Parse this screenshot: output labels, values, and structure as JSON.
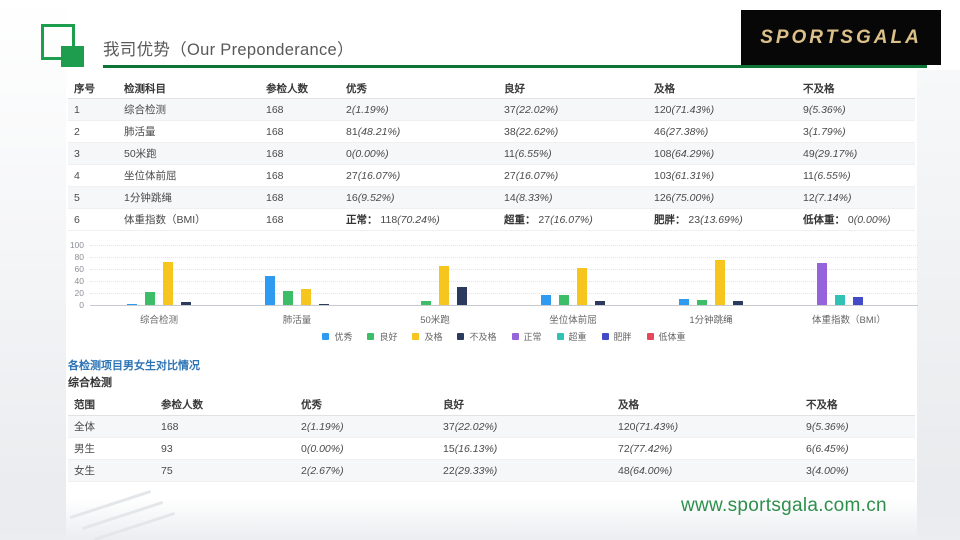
{
  "header": {
    "title": "我司优势（Our Preponderance）",
    "logo": "SPORTSGALA"
  },
  "table1": {
    "headers": [
      "序号",
      "检测科目",
      "参检人数",
      "优秀",
      "良好",
      "及格",
      "不及格"
    ],
    "rows": [
      [
        "1",
        "综合检测",
        "168",
        "2(1.19%)",
        "37(22.02%)",
        "120(71.43%)",
        "9(5.36%)"
      ],
      [
        "2",
        "肺活量",
        "168",
        "81(48.21%)",
        "38(22.62%)",
        "46(27.38%)",
        "3(1.79%)"
      ],
      [
        "3",
        "50米跑",
        "168",
        "0(0.00%)",
        "11(6.55%)",
        "108(64.29%)",
        "49(29.17%)"
      ],
      [
        "4",
        "坐位体前屈",
        "168",
        "27(16.07%)",
        "27(16.07%)",
        "103(61.31%)",
        "11(6.55%)"
      ],
      [
        "5",
        "1分钟跳绳",
        "168",
        "16(9.52%)",
        "14(8.33%)",
        "126(75.00%)",
        "12(7.14%)"
      ],
      [
        "6",
        "体重指数（BMI）",
        "168",
        "正常： 118(70.24%)",
        "超重： 27(16.07%)",
        "肥胖： 23(13.69%)",
        "低体重： 0(0.00%)"
      ]
    ]
  },
  "chart_data": {
    "type": "bar",
    "categories": [
      "综合检测",
      "肺活量",
      "50米跑",
      "坐位体前屈",
      "1分钟跳绳",
      "体重指数（BMI）"
    ],
    "values": [
      [
        1.19,
        22.02,
        71.43,
        5.36
      ],
      [
        48.21,
        22.62,
        27.38,
        1.79
      ],
      [
        0,
        6.55,
        64.29,
        29.17
      ],
      [
        16.07,
        16.07,
        61.31,
        6.55
      ],
      [
        9.52,
        8.33,
        75.0,
        7.14
      ],
      [
        70.24,
        16.07,
        13.69,
        0
      ]
    ],
    "yticks": [
      0,
      20,
      40,
      60,
      80,
      100
    ],
    "ylim": [
      0,
      100
    ],
    "grid": "dotted",
    "legend_position": "bottom",
    "legend": [
      {
        "label": "优秀",
        "color": "#2f9bf0"
      },
      {
        "label": "良好",
        "color": "#3dbd67"
      },
      {
        "label": "及格",
        "color": "#f6c51e"
      },
      {
        "label": "不及格",
        "color": "#2c3a5e"
      },
      {
        "label": "正常",
        "color": "#9564da"
      },
      {
        "label": "超重",
        "color": "#30c2b4"
      },
      {
        "label": "肥胖",
        "color": "#434bc7"
      },
      {
        "label": "低体重",
        "color": "#e5475d"
      }
    ]
  },
  "section": {
    "title": "各检测项目男女生对比情况",
    "subtitle": "综合检测"
  },
  "table2": {
    "headers": [
      "范围",
      "参检人数",
      "优秀",
      "良好",
      "及格",
      "不及格"
    ],
    "rows": [
      [
        "全体",
        "168",
        "2(1.19%)",
        "37(22.02%)",
        "120(71.43%)",
        "9(5.36%)"
      ],
      [
        "男生",
        "93",
        "0(0.00%)",
        "15(16.13%)",
        "72(77.42%)",
        "6(6.45%)"
      ],
      [
        "女生",
        "75",
        "2(2.67%)",
        "22(29.33%)",
        "48(64.00%)",
        "3(4.00%)"
      ]
    ]
  },
  "footer": {
    "url": "www.sportsgala.com.cn"
  },
  "colors": {
    "accent_green": "#1f9d4f",
    "underline_green": "#0d7436",
    "logo_gold": "#dcc08a",
    "section_blue": "#2e74b5",
    "url_green": "#2e8f4c"
  }
}
